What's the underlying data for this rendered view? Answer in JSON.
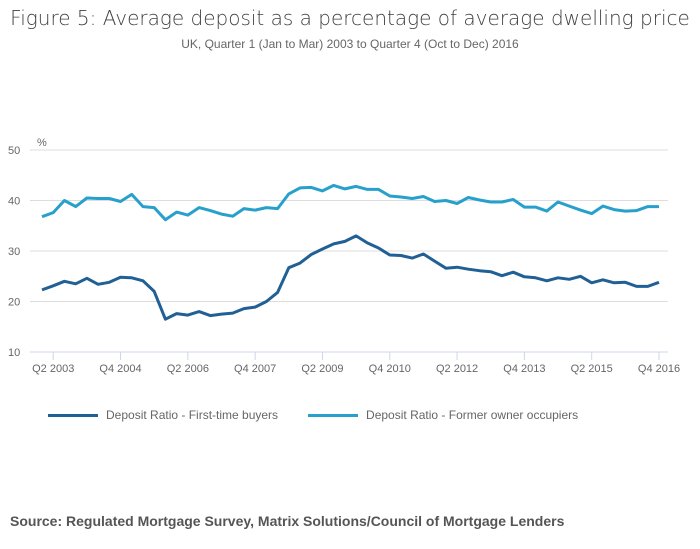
{
  "title": "Figure 5: Average deposit as a percentage of average dwelling price",
  "subtitle": "UK, Quarter 1 (Jan to Mar) 2003 to Quarter 4 (Oct to Dec) 2016",
  "source": "Source: Regulated Mortgage Survey, Matrix Solutions/Council of Mortgage Lenders",
  "chart_data": {
    "type": "line",
    "ylabel": "%",
    "ylim": [
      10,
      50
    ],
    "yticks": [
      10,
      20,
      30,
      40,
      50
    ],
    "grid": true,
    "legend_position": "bottom",
    "xtick_labels": [
      "Q2 2003",
      "Q4 2004",
      "Q2 2006",
      "Q4 2007",
      "Q2 2009",
      "Q4 2010",
      "Q2 2012",
      "Q4 2013",
      "Q2 2015",
      "Q4 2016"
    ],
    "x_start": "Q1 2003",
    "x_end": "Q4 2016",
    "series": [
      {
        "name": "Deposit Ratio - First-time buyers",
        "color": "#206095",
        "values": [
          22.3,
          23.1,
          24.0,
          23.5,
          24.6,
          23.4,
          23.8,
          24.8,
          24.7,
          24.1,
          22.0,
          16.5,
          17.6,
          17.3,
          18.0,
          17.2,
          17.5,
          17.7,
          18.6,
          18.9,
          20.0,
          21.8,
          26.7,
          27.6,
          29.3,
          30.4,
          31.4,
          31.9,
          33.0,
          31.6,
          30.6,
          29.2,
          29.1,
          28.6,
          29.4,
          28.0,
          26.6,
          26.8,
          26.4,
          26.1,
          25.9,
          25.1,
          25.8,
          24.9,
          24.7,
          24.1,
          24.7,
          24.4,
          25.0,
          23.7,
          24.3,
          23.7,
          23.8,
          23.0,
          23.0,
          23.8
        ]
      },
      {
        "name": "Deposit Ratio - Former owner occupiers",
        "color": "#27a0cc",
        "values": [
          36.8,
          37.6,
          40.0,
          38.8,
          40.5,
          40.4,
          40.4,
          39.8,
          41.2,
          38.8,
          38.6,
          36.2,
          37.7,
          37.1,
          38.6,
          38.0,
          37.3,
          36.9,
          38.4,
          38.1,
          38.6,
          38.4,
          41.3,
          42.5,
          42.6,
          41.9,
          43.0,
          42.3,
          42.8,
          42.2,
          42.2,
          40.9,
          40.7,
          40.4,
          40.8,
          39.8,
          40.0,
          39.4,
          40.6,
          40.1,
          39.7,
          39.7,
          40.2,
          38.7,
          38.7,
          37.9,
          39.7,
          38.9,
          38.1,
          37.4,
          38.9,
          38.2,
          37.9,
          38.0,
          38.8,
          38.8
        ]
      }
    ]
  }
}
